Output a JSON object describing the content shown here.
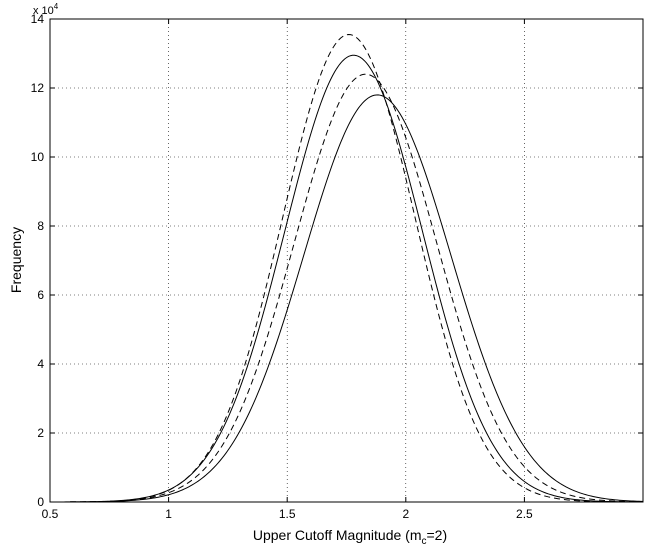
{
  "chart_data": {
    "type": "line",
    "title": "",
    "xlabel": "Upper Cutoff Magnitude (m",
    "xlabel_subscript": "c",
    "xlabel_tail": "=2)",
    "ylabel": "Frequency",
    "y_multiplier_text": "x 10",
    "y_multiplier_exponent": "4",
    "xlim": [
      0.5,
      3
    ],
    "ylim": [
      0,
      14
    ],
    "xticks": [
      0.5,
      1,
      1.5,
      2,
      2.5,
      3
    ],
    "xtick_labels": [
      "0.5",
      "1",
      "1.5",
      "2",
      "2.5",
      ""
    ],
    "yticks": [
      0,
      2,
      4,
      6,
      8,
      10,
      12,
      14
    ],
    "ytick_labels": [
      "0",
      "2",
      "4",
      "6",
      "8",
      "10",
      "12",
      "14"
    ],
    "grid": true,
    "series": [
      {
        "style": "dashed",
        "peak_x": 1.76,
        "peak_y": 13.55,
        "sigma": 0.28
      },
      {
        "style": "solid",
        "peak_x": 1.78,
        "peak_y": 12.95,
        "sigma": 0.29
      },
      {
        "style": "dashed",
        "peak_x": 1.83,
        "peak_y": 12.4,
        "sigma": 0.3
      },
      {
        "style": "solid",
        "peak_x": 1.88,
        "peak_y": 11.8,
        "sigma": 0.31
      }
    ]
  }
}
